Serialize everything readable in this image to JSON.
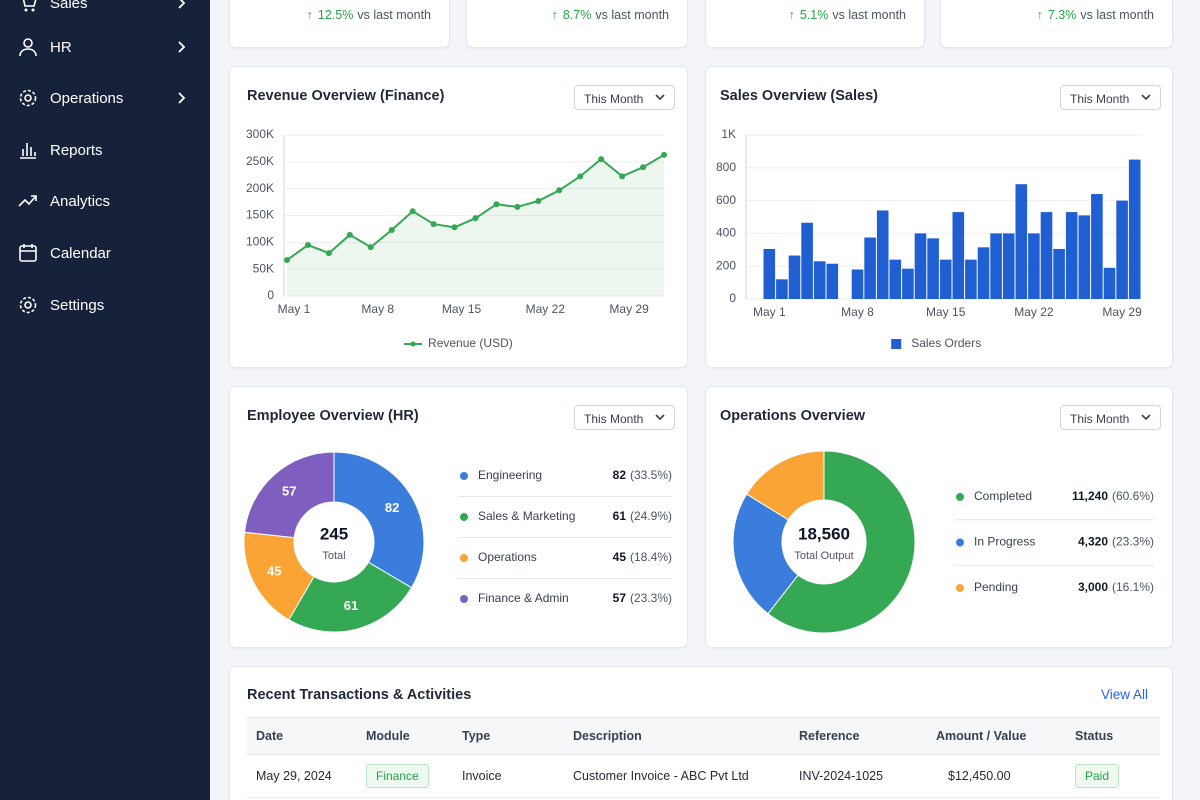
{
  "sidebar": {
    "items": [
      "Sales",
      "HR",
      "Operations",
      "Reports",
      "Analytics",
      "Calendar",
      "Settings"
    ]
  },
  "kpis": [
    {
      "change": "12.5%",
      "note": "vs last month"
    },
    {
      "change": "8.7%",
      "note": "vs last month"
    },
    {
      "change": "5.1%",
      "note": "vs last month"
    },
    {
      "change": "7.3%",
      "note": "vs last month"
    }
  ],
  "chart_data": [
    {
      "type": "line",
      "title": "Revenue Overview (Finance)",
      "filter": "This Month",
      "categories": [
        "May 1",
        null,
        null,
        null,
        "May 8",
        null,
        null,
        null,
        "May 15",
        null,
        null,
        null,
        "May 22",
        null,
        null,
        null,
        "May 29",
        null,
        null
      ],
      "series": [
        {
          "name": "Revenue (USD)",
          "color": "#34a853",
          "values": [
            67000,
            95000,
            80000,
            114000,
            91000,
            123000,
            158000,
            134000,
            128000,
            145000,
            171000,
            166000,
            177000,
            197000,
            223000,
            255000,
            223000,
            240000,
            263000
          ]
        }
      ],
      "ylim": [
        0,
        300000
      ],
      "yticks": [
        0,
        {
          "value": 50000,
          "label": "50K"
        },
        {
          "value": 100000,
          "label": "100K"
        },
        {
          "value": 150000,
          "label": "150K"
        },
        {
          "value": 200000,
          "label": "200K"
        },
        {
          "value": 250000,
          "label": "250K"
        },
        {
          "value": 300000,
          "label": "300K"
        }
      ],
      "grid": true,
      "legend": "bottom"
    },
    {
      "type": "bar",
      "title": "Sales Overview (Sales)",
      "filter": "This Month",
      "categories": [
        "May 1",
        null,
        null,
        null,
        null,
        null,
        null,
        "May 8",
        null,
        null,
        null,
        null,
        null,
        null,
        "May 15",
        null,
        null,
        null,
        null,
        null,
        null,
        "May 22",
        null,
        null,
        null,
        null,
        null,
        null,
        "May 29",
        null
      ],
      "series": [
        {
          "name": "Sales Orders",
          "color": "#1f5fd1",
          "values": [
            305,
            120,
            265,
            465,
            230,
            215,
            null,
            180,
            375,
            540,
            240,
            185,
            400,
            370,
            240,
            530,
            240,
            315,
            400,
            400,
            700,
            400,
            530,
            305,
            530,
            510,
            640,
            190,
            600,
            850
          ]
        }
      ],
      "ylim": [
        0,
        1000
      ],
      "yticks": [
        0,
        200,
        400,
        600,
        800,
        {
          "value": 1000,
          "label": "1K"
        }
      ],
      "grid": true,
      "legend": "bottom"
    },
    {
      "type": "donut",
      "title": "Employee Overview (HR)",
      "filter": "This Month",
      "categories": [
        "Engineering",
        "Sales & Marketing",
        "Operations",
        "Finance & Admin"
      ],
      "values": [
        82,
        61,
        45,
        57
      ],
      "share_labels": [
        "(33.5%)",
        "(24.9%)",
        "(18.4%)",
        "(23.3%)"
      ],
      "colors": [
        "#3b7ddd",
        "#34a853",
        "#f9a435",
        "#7e5fc0"
      ],
      "total": 245,
      "center_label": "Total",
      "slice_labels": true
    },
    {
      "type": "donut",
      "title": "Operations Overview",
      "filter": "This Month",
      "categories": [
        "Completed",
        "In Progress",
        "Pending"
      ],
      "values": [
        11240,
        4320,
        3000
      ],
      "value_labels": [
        "11,240",
        "4,320",
        "3,000"
      ],
      "share_labels": [
        "(60.6%)",
        "(23.3%)",
        "(16.1%)"
      ],
      "colors": [
        "#34a853",
        "#3b7ddd",
        "#f9a435"
      ],
      "total": 18560,
      "total_label": "18,560",
      "center_label": "Total Output",
      "slice_labels": false
    }
  ],
  "transactions": {
    "title": "Recent Transactions & Activities",
    "link": "View All",
    "columns": [
      "Date",
      "Module",
      "Type",
      "Description",
      "Reference",
      "Amount / Value",
      "Status"
    ],
    "rows": [
      [
        "May 29, 2024",
        "Finance",
        "Invoice",
        "Customer Invoice - ABC Pvt Ltd",
        "INV-2024-1025",
        "$12,450.00",
        "Paid"
      ]
    ]
  }
}
